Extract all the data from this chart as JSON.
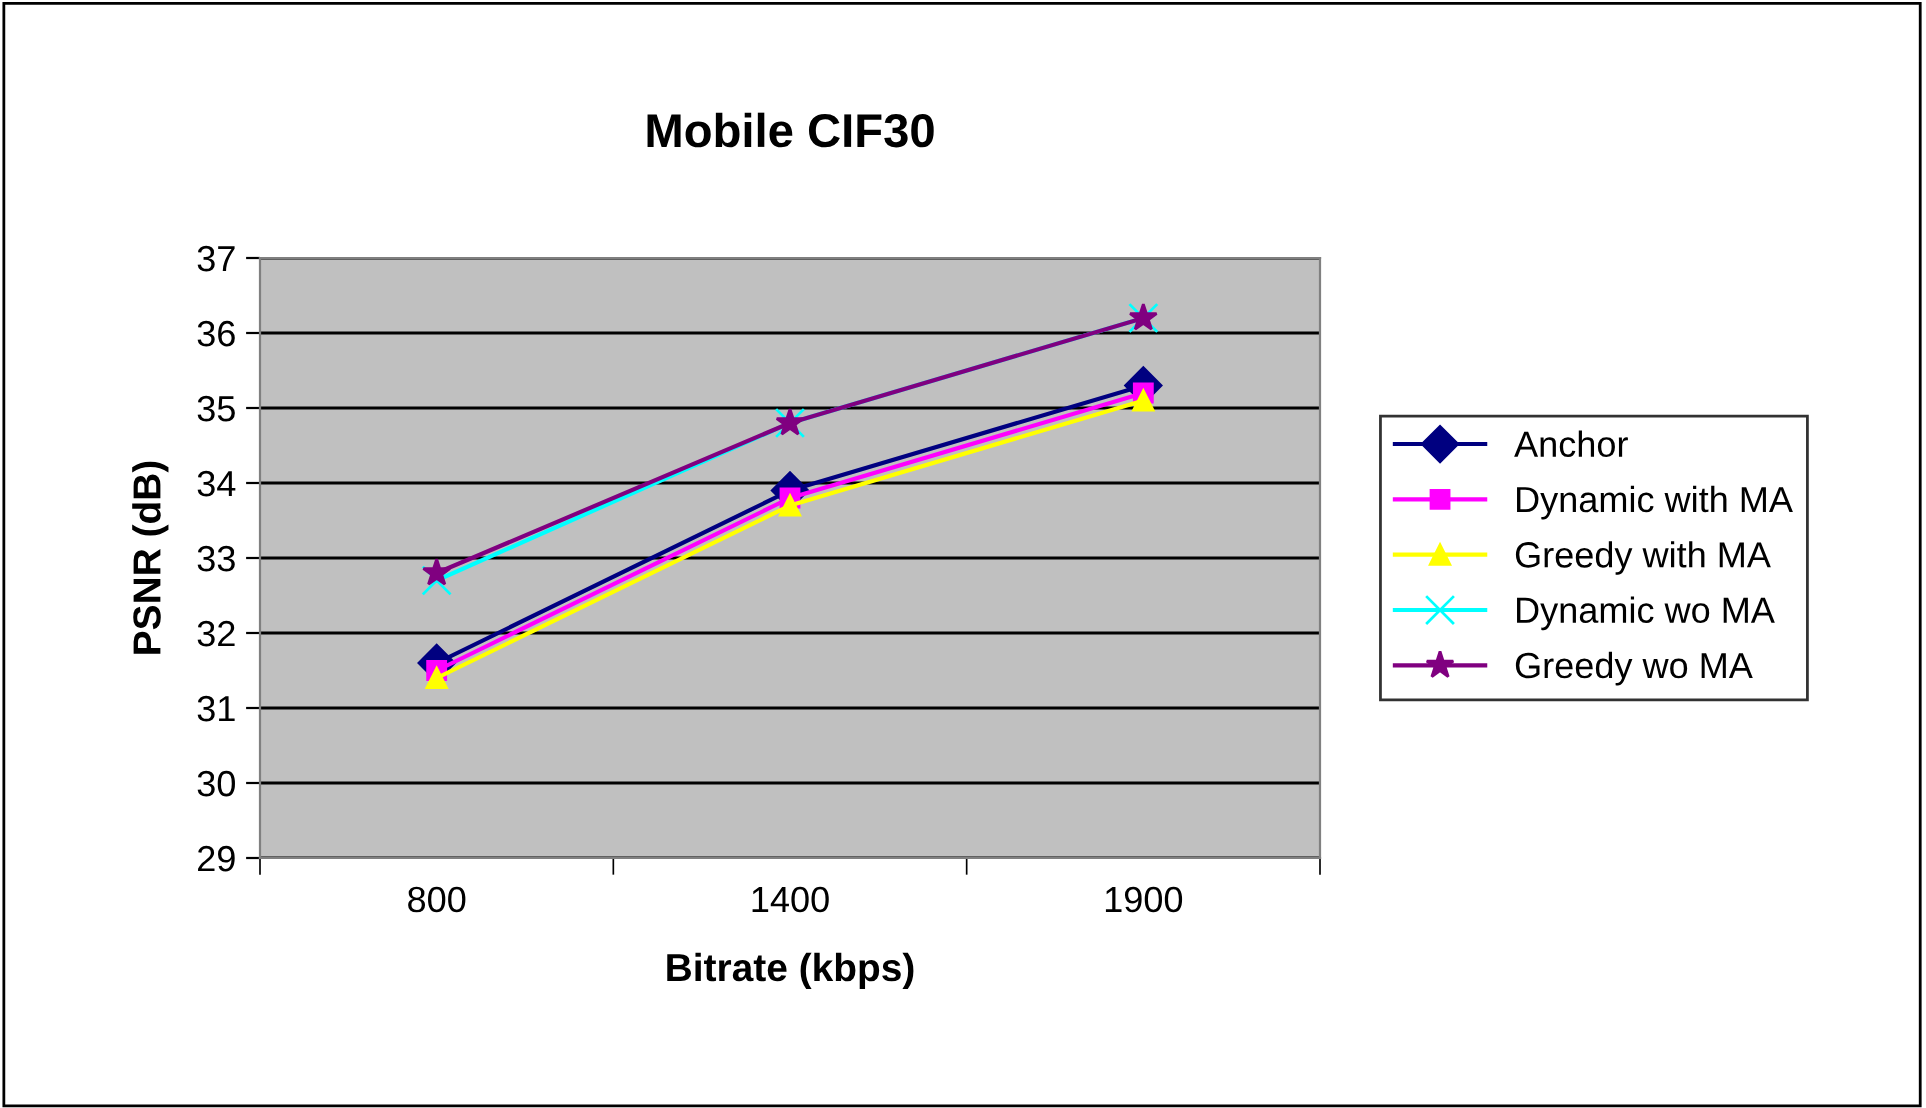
{
  "chart_data": {
    "type": "line",
    "title": "Mobile CIF30",
    "xlabel": "Bitrate (kbps)",
    "ylabel": "PSNR (dB)",
    "categories": [
      "800",
      "1400",
      "1900"
    ],
    "series": [
      {
        "name": "Anchor",
        "color": "#000080",
        "marker": "diamond",
        "values": [
          31.6,
          33.9,
          35.3
        ]
      },
      {
        "name": "Dynamic with MA",
        "color": "#ff00ff",
        "marker": "square",
        "values": [
          31.5,
          33.8,
          35.2
        ]
      },
      {
        "name": "Greedy with MA",
        "color": "#ffff00",
        "marker": "triangle",
        "values": [
          31.4,
          33.7,
          35.1
        ]
      },
      {
        "name": "Dynamic wo MA",
        "color": "#00ffff",
        "marker": "cross",
        "values": [
          32.7,
          34.8,
          36.2
        ]
      },
      {
        "name": "Greedy wo MA",
        "color": "#800080",
        "marker": "star",
        "values": [
          32.8,
          34.8,
          36.2
        ]
      }
    ],
    "ylim": [
      29,
      37
    ],
    "yticks": [
      29,
      30,
      31,
      32,
      33,
      34,
      35,
      36,
      37
    ],
    "grid": "y",
    "legend": "right"
  }
}
